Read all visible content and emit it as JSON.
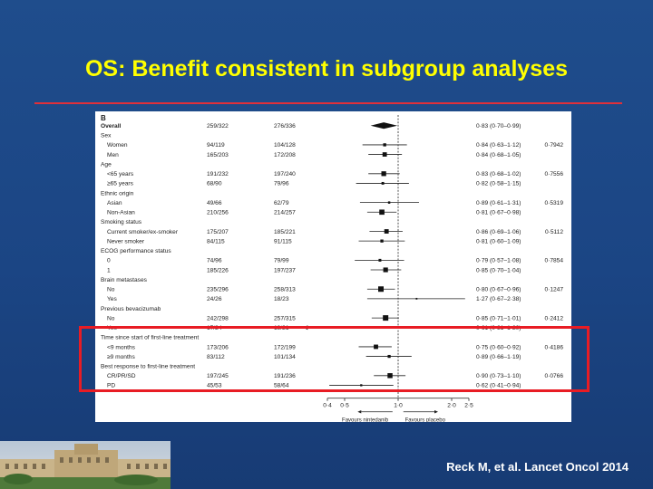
{
  "slide": {
    "title": "OS: Benefit consistent in subgroup analyses",
    "citation": "Reck M, et al. Lancet Oncol 2014"
  },
  "colors": {
    "background": "#1b4584",
    "title": "#ffff00",
    "rule": "#e0303a",
    "highlight": "#e81c24"
  },
  "chart_data": {
    "type": "forest",
    "panel_label": "B",
    "x_scale": "log",
    "xlim": [
      0.4,
      2.5
    ],
    "x_ticks": [
      0.4,
      0.5,
      1.0,
      2.0,
      2.5
    ],
    "x_tick_labels": [
      "0·4",
      "0·5",
      "1·0",
      "2·0",
      "2·5"
    ],
    "reference_line": 1.0,
    "favours_left": "Favours nintedanib",
    "favours_right": "Favours placebo",
    "rows": [
      {
        "label": "Overall",
        "kind": "overall",
        "n_a": "259/322",
        "n_b": "276/336",
        "hr": 0.83,
        "lo": 0.7,
        "hi": 0.99,
        "ci_text": "0·83 (0·70–0·99)",
        "p": ""
      },
      {
        "label": "Sex",
        "kind": "header"
      },
      {
        "label": "Women",
        "kind": "item",
        "n_a": "94/119",
        "n_b": "104/128",
        "hr": 0.84,
        "lo": 0.63,
        "hi": 1.12,
        "ci_text": "0·84 (0·63–1·12)",
        "p": "0·7942"
      },
      {
        "label": "Men",
        "kind": "item",
        "n_a": "165/203",
        "n_b": "172/208",
        "hr": 0.84,
        "lo": 0.68,
        "hi": 1.05,
        "ci_text": "0·84 (0·68–1·05)",
        "p": ""
      },
      {
        "label": "Age",
        "kind": "header"
      },
      {
        "label": "<65 years",
        "kind": "item",
        "n_a": "191/232",
        "n_b": "197/240",
        "hr": 0.83,
        "lo": 0.68,
        "hi": 1.02,
        "ci_text": "0·83 (0·68–1·02)",
        "p": "0·7556"
      },
      {
        "label": "≥65 years",
        "kind": "item",
        "n_a": "68/90",
        "n_b": "79/96",
        "hr": 0.82,
        "lo": 0.58,
        "hi": 1.15,
        "ci_text": "0·82 (0·58–1·15)",
        "p": ""
      },
      {
        "label": "Ethnic origin",
        "kind": "header"
      },
      {
        "label": "Asian",
        "kind": "item",
        "n_a": "49/66",
        "n_b": "62/79",
        "hr": 0.89,
        "lo": 0.61,
        "hi": 1.31,
        "ci_text": "0·89 (0·61–1·31)",
        "p": "0·5319"
      },
      {
        "label": "Non-Asian",
        "kind": "item",
        "n_a": "210/256",
        "n_b": "214/257",
        "hr": 0.81,
        "lo": 0.67,
        "hi": 0.98,
        "ci_text": "0·81 (0·67–0·98)",
        "p": ""
      },
      {
        "label": "Smoking status",
        "kind": "header"
      },
      {
        "label": "Current smoker/ex-smoker",
        "kind": "item",
        "n_a": "175/207",
        "n_b": "185/221",
        "hr": 0.86,
        "lo": 0.69,
        "hi": 1.06,
        "ci_text": "0·86 (0·69–1·06)",
        "p": "0·5112"
      },
      {
        "label": "Never smoker",
        "kind": "item",
        "n_a": "84/115",
        "n_b": "91/115",
        "hr": 0.81,
        "lo": 0.6,
        "hi": 1.09,
        "ci_text": "0·81 (0·60–1·09)",
        "p": ""
      },
      {
        "label": "ECOG performance status",
        "kind": "header"
      },
      {
        "label": "0",
        "kind": "item",
        "n_a": "74/96",
        "n_b": "79/99",
        "hr": 0.79,
        "lo": 0.57,
        "hi": 1.08,
        "ci_text": "0·79 (0·57–1·08)",
        "p": "0·7854"
      },
      {
        "label": "1",
        "kind": "item",
        "n_a": "185/226",
        "n_b": "197/237",
        "hr": 0.85,
        "lo": 0.7,
        "hi": 1.04,
        "ci_text": "0·85 (0·70–1·04)",
        "p": ""
      },
      {
        "label": "Brain metastases",
        "kind": "header"
      },
      {
        "label": "No",
        "kind": "item",
        "n_a": "235/296",
        "n_b": "258/313",
        "hr": 0.8,
        "lo": 0.67,
        "hi": 0.96,
        "ci_text": "0·80 (0·67–0·96)",
        "p": "0·1247"
      },
      {
        "label": "Yes",
        "kind": "item",
        "n_a": "24/26",
        "n_b": "18/23",
        "hr": 1.27,
        "lo": 0.67,
        "hi": 2.38,
        "ci_text": "1·27 (0·67–2·38)",
        "p": ""
      },
      {
        "label": "Previous bevacizumab",
        "kind": "header"
      },
      {
        "label": "No",
        "kind": "item",
        "n_a": "242/298",
        "n_b": "257/315",
        "hr": 0.85,
        "lo": 0.71,
        "hi": 1.01,
        "ci_text": "0·85 (0·71–1·01)",
        "p": "0·2412"
      },
      {
        "label": "Yes",
        "kind": "item",
        "n_a": "17/24",
        "n_b": "19/21",
        "hr": 0.61,
        "lo": 0.31,
        "hi": 1.2,
        "ci_text": "0·61 (0·31–1·20)",
        "p": ""
      },
      {
        "label": "Time since start of first-line treatment",
        "kind": "header"
      },
      {
        "label": "<9 months",
        "kind": "item",
        "n_a": "173/206",
        "n_b": "172/199",
        "hr": 0.75,
        "lo": 0.6,
        "hi": 0.92,
        "ci_text": "0·75 (0·60–0·92)",
        "p": "0·4186"
      },
      {
        "label": "≥9 months",
        "kind": "item",
        "n_a": "83/112",
        "n_b": "101/134",
        "hr": 0.89,
        "lo": 0.66,
        "hi": 1.19,
        "ci_text": "0·89 (0·66–1·19)",
        "p": ""
      },
      {
        "label": "Best response to first-line treatment",
        "kind": "header"
      },
      {
        "label": "CR/PR/SD",
        "kind": "item",
        "n_a": "197/245",
        "n_b": "191/236",
        "hr": 0.9,
        "lo": 0.73,
        "hi": 1.1,
        "ci_text": "0·90 (0·73–1·10)",
        "p": "0·0766"
      },
      {
        "label": "PD",
        "kind": "item",
        "n_a": "45/53",
        "n_b": "58/64",
        "hr": 0.62,
        "lo": 0.41,
        "hi": 0.94,
        "ci_text": "0·62 (0·41–0·94)",
        "p": ""
      }
    ]
  }
}
